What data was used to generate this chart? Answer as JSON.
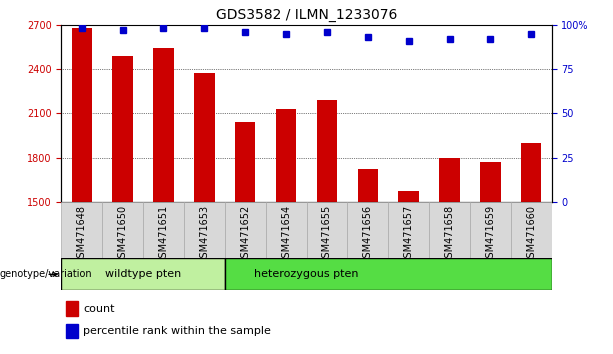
{
  "title": "GDS3582 / ILMN_1233076",
  "categories": [
    "GSM471648",
    "GSM471650",
    "GSM471651",
    "GSM471653",
    "GSM471652",
    "GSM471654",
    "GSM471655",
    "GSM471656",
    "GSM471657",
    "GSM471658",
    "GSM471659",
    "GSM471660"
  ],
  "bar_values": [
    2680,
    2490,
    2540,
    2370,
    2040,
    2130,
    2190,
    1720,
    1570,
    1800,
    1770,
    1900
  ],
  "percentile_values": [
    98,
    97,
    98,
    98,
    96,
    95,
    96,
    93,
    91,
    92,
    92,
    95
  ],
  "bar_color": "#cc0000",
  "percentile_color": "#0000cc",
  "ylim_left": [
    1500,
    2700
  ],
  "ylim_right": [
    0,
    100
  ],
  "yticks_left": [
    1500,
    1800,
    2100,
    2400,
    2700
  ],
  "yticks_right": [
    0,
    25,
    50,
    75,
    100
  ],
  "ytick_labels_right": [
    "0",
    "25",
    "50",
    "75",
    "100%"
  ],
  "group1_label": "wildtype pten",
  "group2_label": "heterozygous pten",
  "group1_count": 4,
  "group2_count": 8,
  "group_label": "genotype/variation",
  "legend_count_label": "count",
  "legend_pct_label": "percentile rank within the sample",
  "bg_color_group1": "#c0f0a0",
  "bg_color_group2": "#55dd44",
  "bar_color_col": "#d8d8d8",
  "title_fontsize": 10,
  "tick_fontsize": 7,
  "label_fontsize": 8
}
